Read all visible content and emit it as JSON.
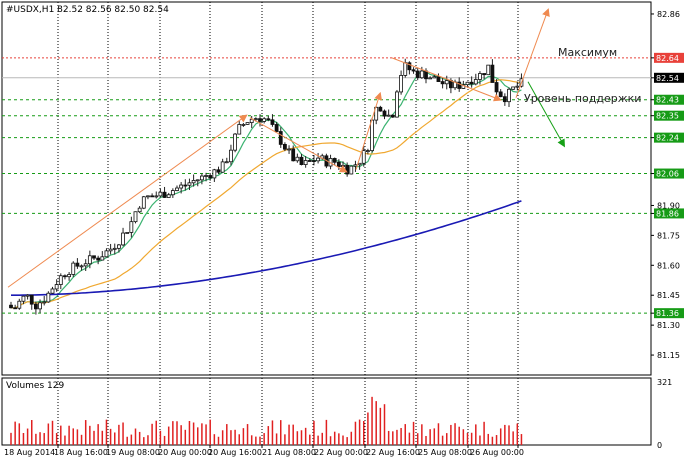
{
  "chart_data": {
    "type": "candlestick",
    "header": "#USDX,H1  82.52 82.56 82.50 82.54",
    "volume_header": "Volumes 129",
    "ylim": [
      81.05,
      82.92
    ],
    "y_ticks": [
      "82.86",
      "82.64",
      "82.54",
      "82.43",
      "82.35",
      "82.24",
      "82.06",
      "81.90",
      "81.86",
      "81.75",
      "81.60",
      "81.45",
      "81.36",
      "81.30",
      "81.15"
    ],
    "volume_ylim": [
      0,
      321
    ],
    "volume_ticks": [
      "321",
      "0"
    ],
    "x_ticks": [
      "18 Aug 2014",
      "18 Aug 16:00",
      "19 Aug 08:00",
      "20 Aug 00:00",
      "20 Aug 16:00",
      "21 Aug 08:00",
      "22 Aug 00:00",
      "22 Aug 16:00",
      "25 Aug 08:00",
      "26 Aug 00:00"
    ],
    "levels": [
      {
        "value": 82.64,
        "label": "82.64",
        "color": "#e8413a",
        "style": "dotted"
      },
      {
        "value": 82.54,
        "label": "82.54",
        "color": "#000000",
        "style": "solid-grey"
      },
      {
        "value": 82.43,
        "label": "82.43",
        "color": "#169b16",
        "style": "dashed"
      },
      {
        "value": 82.35,
        "label": "82.35",
        "color": "#169b16",
        "style": "dashed"
      },
      {
        "value": 82.24,
        "label": "82.24",
        "color": "#169b16",
        "style": "dashed"
      },
      {
        "value": 82.06,
        "label": "82.06",
        "color": "#169b16",
        "style": "dashed"
      },
      {
        "value": 81.86,
        "label": "81.86",
        "color": "#169b16",
        "style": "dashed"
      },
      {
        "value": 81.36,
        "label": "81.36",
        "color": "#169b16",
        "style": "dashed"
      }
    ],
    "annotations": {
      "maximum": "Максимум",
      "support": "Уровень поддержки"
    },
    "colors": {
      "bull": "#1a7a1a",
      "bear": "#c8321e",
      "ma_fast": "#3cb371",
      "ma_mid": "#f0a830",
      "ma_slow": "#1a1ab4",
      "arrow_up": "#ef8a50",
      "arrow_down": "#16a016",
      "volume": "#e02020"
    }
  }
}
